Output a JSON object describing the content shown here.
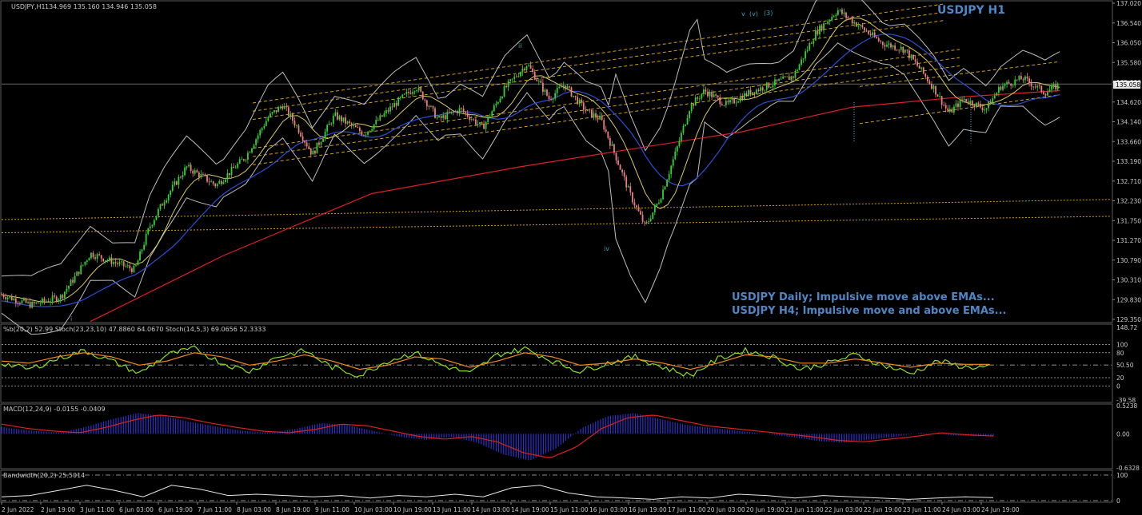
{
  "chart_data": [
    {
      "type": "candlestick",
      "symbol_label": "USDJPY,H1",
      "ohlc_label": "134.969 135.160 134.946 135.058",
      "title": "USDJPY H1",
      "current_price": "135.058",
      "ylim": [
        129.35,
        137.02
      ],
      "y_ticks": [
        "137.020",
        "136.540",
        "136.050",
        "135.580",
        "135.090",
        "134.620",
        "134.140",
        "133.660",
        "133.190",
        "132.710",
        "132.230",
        "131.750",
        "131.270",
        "130.790",
        "130.310",
        "129.830",
        "129.350"
      ],
      "x_ticks": [
        "2 Jun 2022",
        "2 Jun 19:00",
        "3 Jun 11:00",
        "6 Jun 03:00",
        "6 Jun 19:00",
        "7 Jun 11:00",
        "8 Jun 03:00",
        "8 Jun 19:00",
        "9 Jun 11:00",
        "10 Jun 03:00",
        "10 Jun 19:00",
        "13 Jun 11:00",
        "14 Jun 03:00",
        "14 Jun 19:00",
        "15 Jun 11:00",
        "16 Jun 03:00",
        "16 Jun 19:00",
        "17 Jun 11:00",
        "20 Jun 03:00",
        "20 Jun 19:00",
        "21 Jun 11:00",
        "22 Jun 03:00",
        "22 Jun 19:00",
        "23 Jun 11:00",
        "24 Jun 03:00",
        "24 Jun 19:00"
      ],
      "wave_labels": [
        "i",
        "ii",
        "iv",
        "v",
        "(v)",
        "(3)"
      ],
      "annotations": [
        "USDJPY Daily; Impulsive move above EMAs...",
        "USDJPY H4; Impulsive move and above EMAs..."
      ],
      "price_path": [
        {
          "x": 0,
          "y": 129.95
        },
        {
          "x": 4,
          "y": 129.7
        },
        {
          "x": 8,
          "y": 129.9
        },
        {
          "x": 10,
          "y": 130.4
        },
        {
          "x": 12,
          "y": 130.95
        },
        {
          "x": 15,
          "y": 130.75
        },
        {
          "x": 18,
          "y": 130.55
        },
        {
          "x": 20,
          "y": 131.6
        },
        {
          "x": 22,
          "y": 132.25
        },
        {
          "x": 25,
          "y": 133.05
        },
        {
          "x": 29,
          "y": 132.6
        },
        {
          "x": 33,
          "y": 133.3
        },
        {
          "x": 36,
          "y": 134.25
        },
        {
          "x": 38,
          "y": 134.55
        },
        {
          "x": 40,
          "y": 134.0
        },
        {
          "x": 42,
          "y": 133.35
        },
        {
          "x": 45,
          "y": 134.3
        },
        {
          "x": 49,
          "y": 133.85
        },
        {
          "x": 53,
          "y": 134.55
        },
        {
          "x": 56,
          "y": 135.0
        },
        {
          "x": 59,
          "y": 134.2
        },
        {
          "x": 62,
          "y": 134.45
        },
        {
          "x": 65,
          "y": 134.0
        },
        {
          "x": 68,
          "y": 134.95
        },
        {
          "x": 71,
          "y": 135.55
        },
        {
          "x": 74,
          "y": 134.7
        },
        {
          "x": 76,
          "y": 135.05
        },
        {
          "x": 79,
          "y": 134.4
        },
        {
          "x": 81,
          "y": 134.2
        },
        {
          "x": 83,
          "y": 133.3
        },
        {
          "x": 85,
          "y": 132.35
        },
        {
          "x": 87,
          "y": 131.6
        },
        {
          "x": 89,
          "y": 132.3
        },
        {
          "x": 91,
          "y": 133.35
        },
        {
          "x": 93,
          "y": 134.5
        },
        {
          "x": 95,
          "y": 134.9
        },
        {
          "x": 98,
          "y": 134.55
        },
        {
          "x": 101,
          "y": 134.85
        },
        {
          "x": 104,
          "y": 135.05
        },
        {
          "x": 107,
          "y": 135.25
        },
        {
          "x": 110,
          "y": 136.3
        },
        {
          "x": 113,
          "y": 136.85
        },
        {
          "x": 116,
          "y": 136.45
        },
        {
          "x": 119,
          "y": 136.05
        },
        {
          "x": 122,
          "y": 135.9
        },
        {
          "x": 124,
          "y": 135.45
        },
        {
          "x": 126,
          "y": 134.95
        },
        {
          "x": 128,
          "y": 134.35
        },
        {
          "x": 130,
          "y": 134.7
        },
        {
          "x": 133,
          "y": 134.45
        },
        {
          "x": 135,
          "y": 135.0
        },
        {
          "x": 138,
          "y": 135.2
        },
        {
          "x": 141,
          "y": 134.85
        },
        {
          "x": 143,
          "y": 135.05
        }
      ],
      "ema_slow": [
        {
          "x": 12,
          "y": 129.3
        },
        {
          "x": 30,
          "y": 130.9
        },
        {
          "x": 50,
          "y": 132.4
        },
        {
          "x": 70,
          "y": 133.05
        },
        {
          "x": 84,
          "y": 133.45
        },
        {
          "x": 100,
          "y": 133.9
        },
        {
          "x": 115,
          "y": 134.5
        },
        {
          "x": 130,
          "y": 134.75
        },
        {
          "x": 143,
          "y": 134.9
        }
      ]
    },
    {
      "type": "line",
      "label": "%b(20,2) 52.99  Stoch(23,23,10) 47.8860 64.0670  Stoch(14,5,3) 69.0656 52.3333",
      "ylim": [
        -39.58,
        148.72
      ],
      "y_ticks": [
        "148.72",
        "100",
        "80",
        "50.50",
        "20",
        "0",
        "-39.58"
      ],
      "series": [
        {
          "values": [
            55,
            40,
            65,
            85,
            60,
            30,
            75,
            90,
            55,
            35,
            70,
            85,
            45,
            25,
            60,
            80,
            50,
            30,
            75,
            90,
            60,
            35,
            55,
            70,
            45,
            25,
            65,
            85,
            70,
            40,
            55,
            75,
            50,
            30,
            60,
            45
          ]
        },
        {
          "values": [
            60,
            55,
            70,
            80,
            70,
            50,
            60,
            80,
            70,
            50,
            60,
            75,
            60,
            40,
            50,
            70,
            65,
            45,
            60,
            80,
            70,
            50,
            55,
            65,
            55,
            40,
            55,
            75,
            70,
            55,
            55,
            65,
            55,
            45,
            55,
            52
          ]
        }
      ]
    },
    {
      "type": "bar",
      "label": "MACD(12,24,9) -0.0155 -0.0409",
      "ylim": [
        -0.6328,
        0.5238
      ],
      "y_ticks": [
        "0.5238",
        "0.00",
        "-0.6328"
      ],
      "signal": [
        0.18,
        0.1,
        0.05,
        0.02,
        0.12,
        0.25,
        0.35,
        0.3,
        0.2,
        0.12,
        0.05,
        0.02,
        0.08,
        0.18,
        0.15,
        0.05,
        -0.05,
        -0.1,
        -0.05,
        -0.15,
        -0.35,
        -0.45,
        -0.25,
        0.1,
        0.3,
        0.35,
        0.25,
        0.15,
        0.1,
        0.05,
        0.0,
        -0.05,
        -0.12,
        -0.15,
        -0.1,
        -0.05,
        0.02,
        -0.02,
        -0.04
      ]
    },
    {
      "type": "line",
      "label": "Bandwidth(20,2) 25.5014",
      "y_ticks": [
        "100",
        "0"
      ],
      "values": [
        15,
        20,
        40,
        60,
        40,
        15,
        60,
        45,
        20,
        25,
        20,
        15,
        20,
        10,
        20,
        15,
        25,
        15,
        50,
        60,
        30,
        15,
        10,
        5,
        15,
        10,
        25,
        20,
        10,
        20,
        15,
        10,
        5,
        10,
        15,
        12
      ]
    }
  ]
}
